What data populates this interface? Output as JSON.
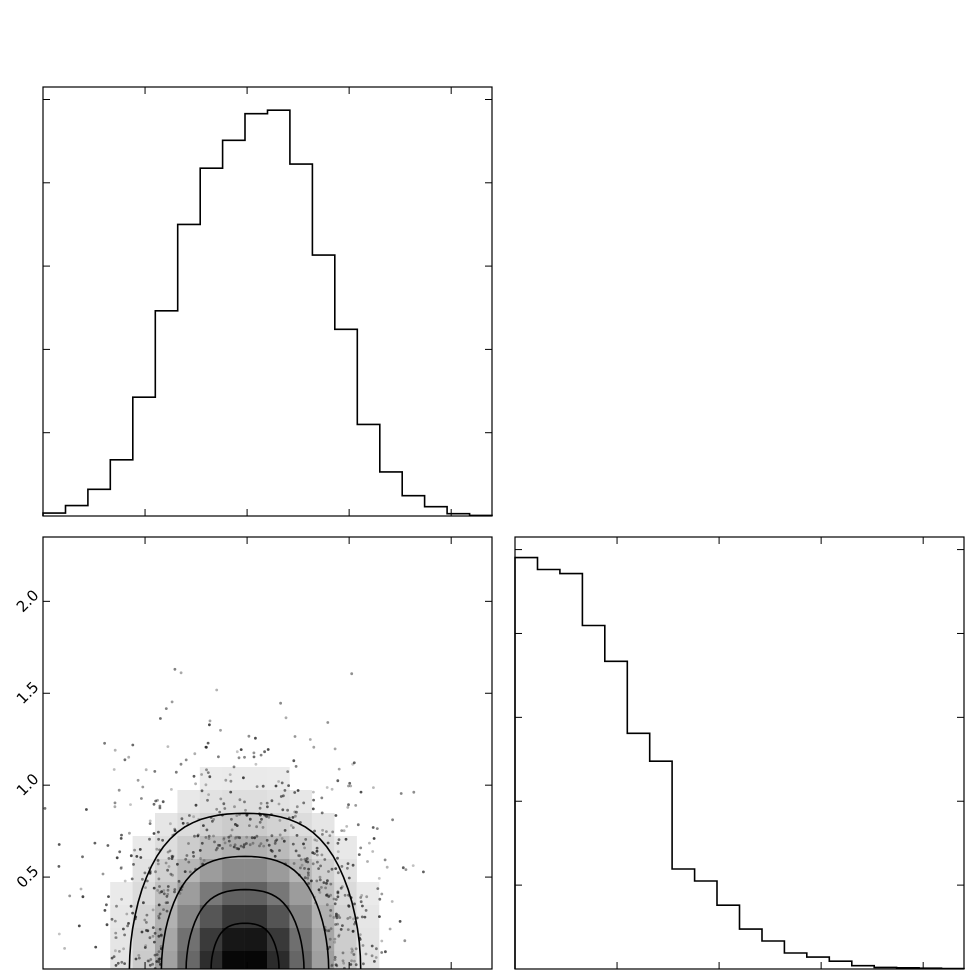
{
  "chart_data": [
    {
      "panel": "top-left",
      "type": "histogram-step",
      "xlabel": "",
      "ylabel": "",
      "bin_heights": [
        0.5,
        1.8,
        4.6,
        9.7,
        20.5,
        35.4,
        50.3,
        60.0,
        64.8,
        69.4,
        70.0,
        60.7,
        45.0,
        32.2,
        15.8,
        7.6,
        3.5,
        1.6,
        0.4,
        0.1
      ],
      "ylim": [
        0,
        74
      ]
    },
    {
      "panel": "bottom-left",
      "type": "heatmap",
      "xlabel": "",
      "ylabel": "",
      "ylim": [
        0,
        2.35
      ],
      "ytick_labels": [
        "0.5",
        "1.0",
        "1.5",
        "2.0"
      ],
      "ytick_values": [
        0.5,
        1.0,
        1.5,
        2.0
      ],
      "x_range": [
        0,
        20
      ],
      "x_center": 9.0,
      "x_sigma": 2.4,
      "y_scale": 0.42,
      "point_count": 1500,
      "density_levels": [
        "peak",
        "inner",
        "middle",
        "outer"
      ],
      "colors": {
        "darkest": "#000000",
        "lightest": "#f4f4f4",
        "points": "#222222"
      }
    },
    {
      "panel": "bottom-right",
      "type": "histogram-step",
      "xlabel": "",
      "ylabel": "",
      "bin_heights": [
        100,
        97.1,
        96.1,
        83.5,
        74.8,
        57.3,
        50.5,
        24.3,
        21.4,
        15.5,
        9.7,
        6.8,
        3.9,
        2.9,
        1.9,
        0.8,
        0.4,
        0.3,
        0.2,
        0.1
      ],
      "ylim": [
        0,
        105
      ]
    }
  ]
}
